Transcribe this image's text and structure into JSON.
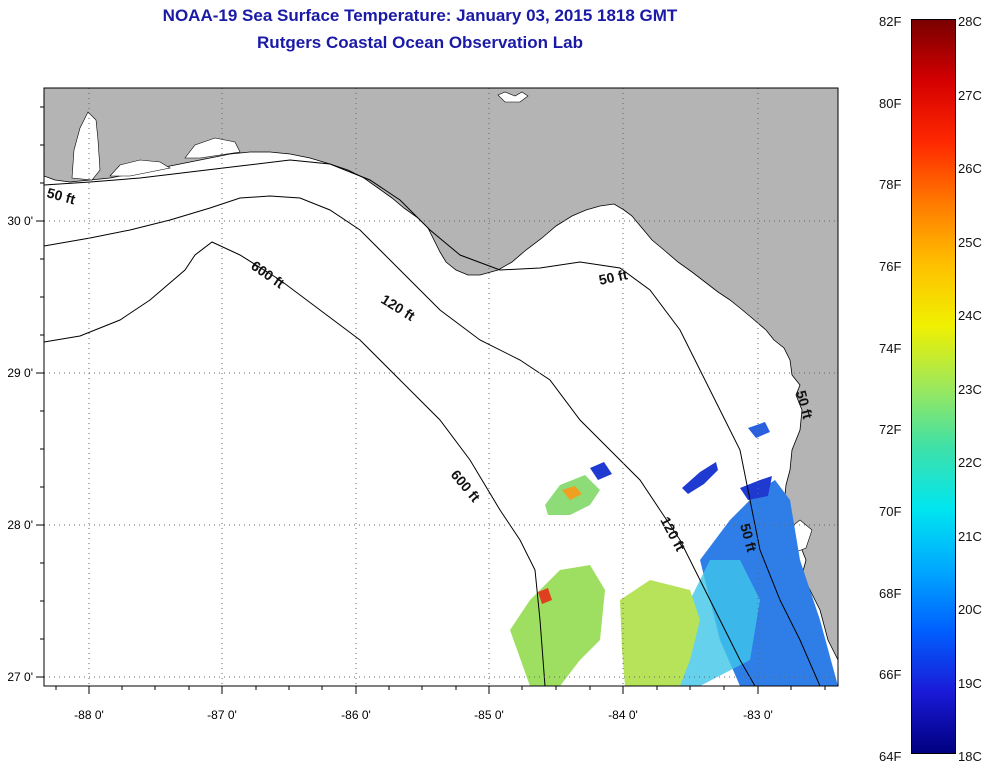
{
  "title": {
    "line1": "NOAA-19 Sea Surface Temperature:  January 03, 2015 1818 GMT",
    "line2": "Rutgers Coastal Ocean Observation Lab"
  },
  "colors": {
    "title": "#1a1aa6",
    "land": "#b4b4b4",
    "ocean": "#ffffff"
  },
  "map": {
    "longitude_labels": [
      "-88 0'",
      "-87 0'",
      "-86 0'",
      "-85 0'",
      "-84 0'",
      "-83 0'"
    ],
    "latitude_labels": [
      "30 0'",
      "29 0'",
      "28 0'",
      "27 0'"
    ],
    "contour_labels": [
      {
        "id": "c50-west",
        "text": "50 ft"
      },
      {
        "id": "c600-north",
        "text": "600 ft"
      },
      {
        "id": "c120-north",
        "text": "120 ft"
      },
      {
        "id": "c50-east",
        "text": "50 ft"
      },
      {
        "id": "c600-south",
        "text": "600 ft"
      },
      {
        "id": "c120-south",
        "text": "120 ft"
      },
      {
        "id": "c50-south",
        "text": "50 ft"
      },
      {
        "id": "c50-coast",
        "text": "50 ft"
      }
    ]
  },
  "colorbar": {
    "fahrenheit": [
      "82F",
      "80F",
      "78F",
      "76F",
      "74F",
      "72F",
      "70F",
      "68F",
      "66F",
      "64F"
    ],
    "celsius": [
      "28C",
      "27C",
      "26C",
      "25C",
      "24C",
      "23C",
      "22C",
      "21C",
      "20C",
      "19C",
      "18C"
    ],
    "gradient": [
      "#7a0000",
      "#d40000",
      "#ff2800",
      "#ff7a00",
      "#ffc000",
      "#f0f000",
      "#9ee85a",
      "#3ee0a8",
      "#00e6f0",
      "#00a8ff",
      "#0060ff",
      "#1a1ad8",
      "#000080"
    ]
  }
}
